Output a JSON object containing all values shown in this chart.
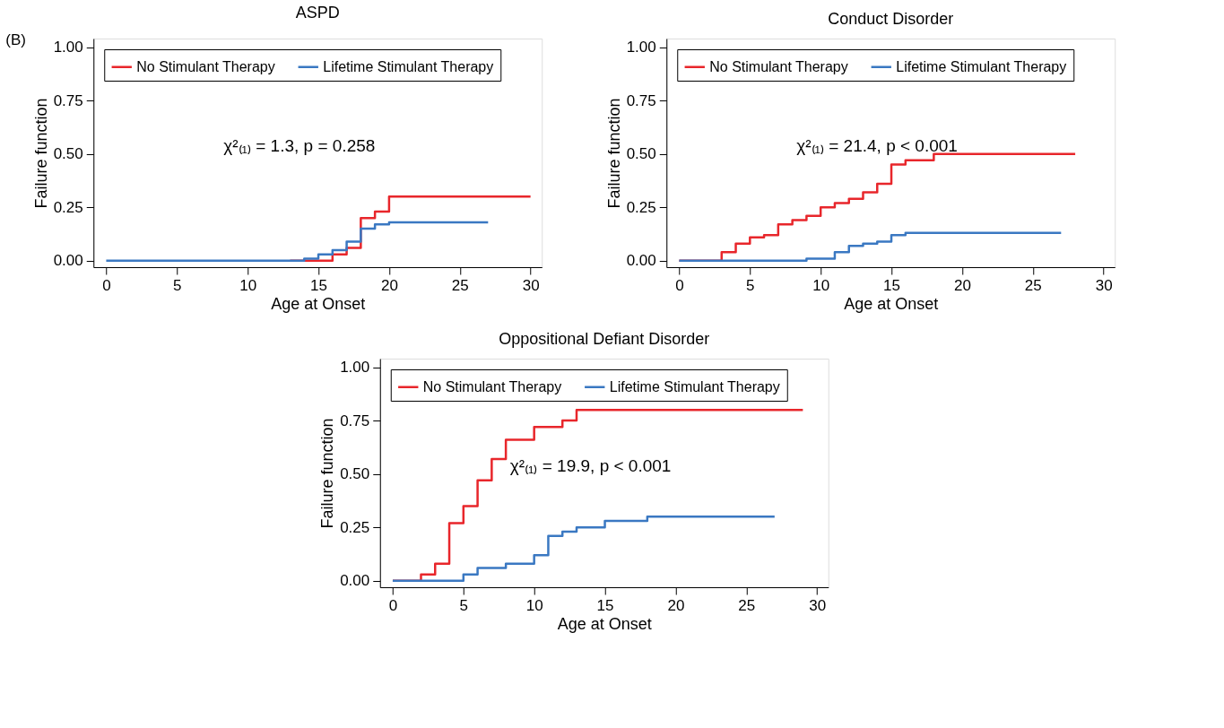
{
  "chart_data": [
    {
      "type": "step",
      "title": "ASPD",
      "xlabel": "Age at Onset",
      "ylabel": "Failure function",
      "legend": "top left",
      "grid": false,
      "xlim": [
        -0.9,
        30.8
      ],
      "xticks": [
        0,
        5,
        10,
        15,
        20,
        25,
        30
      ],
      "ylim": [
        -0.03,
        1.04
      ],
      "yticks": [
        {
          "value": 0,
          "label": "0.00"
        },
        {
          "value": 0.25,
          "label": "0.25"
        },
        {
          "value": 0.5,
          "label": "0.50"
        },
        {
          "value": 0.75,
          "label": "0.75"
        },
        {
          "value": 1,
          "label": "1.00"
        }
      ],
      "annotations": [
        "(B)",
        "χ²₍₁₎ = 1.3, p = 0.258"
      ],
      "series": [
        {
          "name": "No Stimulant Therapy",
          "color": "#e8262b",
          "x": [
            13,
            16,
            17,
            18,
            19,
            20,
            30
          ],
          "values": [
            0,
            0.03,
            0.06,
            0.2,
            0.23,
            0.3,
            0.3
          ]
        },
        {
          "name": "Lifetime Stimulant Therapy",
          "color": "#3a78c2",
          "x": [
            0,
            14,
            15,
            16,
            17,
            18,
            19,
            20,
            27
          ],
          "values": [
            0,
            0.01,
            0.03,
            0.05,
            0.09,
            0.15,
            0.17,
            0.18,
            0.18
          ]
        }
      ]
    },
    {
      "type": "step",
      "title": "Conduct Disorder",
      "xlabel": "Age at Onset",
      "ylabel": "Failure function",
      "legend": "top left",
      "grid": false,
      "xlim": [
        -0.9,
        30.8
      ],
      "xticks": [
        0,
        5,
        10,
        15,
        20,
        25,
        30
      ],
      "ylim": [
        -0.03,
        1.04
      ],
      "yticks": [
        {
          "value": 0,
          "label": "0.00"
        },
        {
          "value": 0.25,
          "label": "0.25"
        },
        {
          "value": 0.5,
          "label": "0.50"
        },
        {
          "value": 0.75,
          "label": "0.75"
        },
        {
          "value": 1,
          "label": "1.00"
        }
      ],
      "annotations": [
        "χ²₍₁₎ = 21.4, p < 0.001"
      ],
      "series": [
        {
          "name": "No Stimulant Therapy",
          "color": "#e8262b",
          "x": [
            0,
            3,
            4,
            5,
            6,
            7,
            8,
            9,
            10,
            11,
            12,
            13,
            14,
            15,
            16,
            18,
            28
          ],
          "values": [
            0,
            0.04,
            0.08,
            0.11,
            0.12,
            0.17,
            0.19,
            0.21,
            0.25,
            0.27,
            0.29,
            0.32,
            0.36,
            0.45,
            0.47,
            0.5,
            0.5
          ]
        },
        {
          "name": "Lifetime Stimulant Therapy",
          "color": "#3a78c2",
          "x": [
            0,
            9,
            11,
            12,
            13,
            14,
            15,
            16,
            27
          ],
          "values": [
            0,
            0.01,
            0.04,
            0.07,
            0.08,
            0.09,
            0.12,
            0.13,
            0.13
          ]
        }
      ]
    },
    {
      "type": "step",
      "title": "Oppositional Defiant Disorder",
      "xlabel": "Age at Onset",
      "ylabel": "Failure function",
      "legend": "top left",
      "grid": false,
      "xlim": [
        -0.9,
        30.8
      ],
      "xticks": [
        0,
        5,
        10,
        15,
        20,
        25,
        30
      ],
      "ylim": [
        -0.03,
        1.04
      ],
      "yticks": [
        {
          "value": 0,
          "label": "0.00"
        },
        {
          "value": 0.25,
          "label": "0.25"
        },
        {
          "value": 0.5,
          "label": "0.50"
        },
        {
          "value": 0.75,
          "label": "0.75"
        },
        {
          "value": 1,
          "label": "1.00"
        }
      ],
      "annotations": [
        "χ²₍₁₎ = 19.9, p < 0.001"
      ],
      "series": [
        {
          "name": "No Stimulant Therapy",
          "color": "#e8262b",
          "x": [
            0,
            2,
            3,
            4,
            5,
            6,
            7,
            8,
            10,
            12,
            13,
            29
          ],
          "values": [
            0,
            0.03,
            0.08,
            0.27,
            0.35,
            0.47,
            0.57,
            0.66,
            0.72,
            0.75,
            0.8,
            0.8
          ]
        },
        {
          "name": "Lifetime Stimulant Therapy",
          "color": "#3a78c2",
          "x": [
            0,
            5,
            6,
            8,
            10,
            11,
            12,
            13,
            15,
            18,
            27
          ],
          "values": [
            0,
            0.03,
            0.06,
            0.08,
            0.12,
            0.21,
            0.23,
            0.25,
            0.28,
            0.3,
            0.3
          ]
        }
      ]
    }
  ]
}
